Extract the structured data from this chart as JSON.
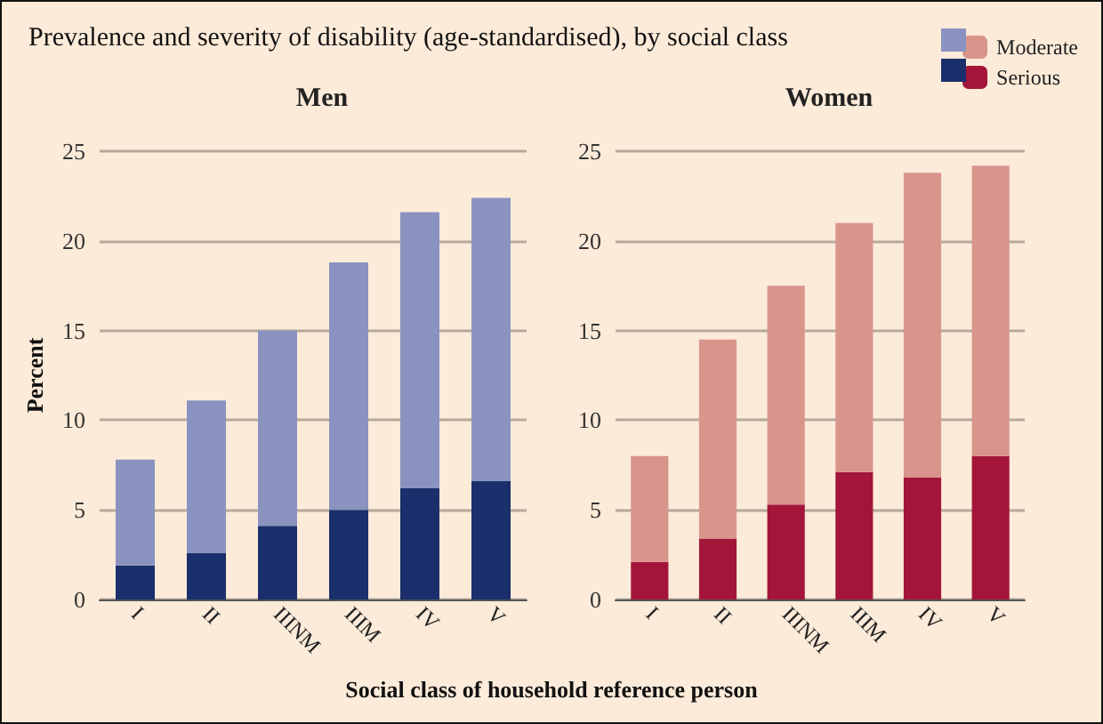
{
  "chart_data": [
    {
      "type": "bar",
      "title": "Prevalence and severity of disability (age-standardised), by social class",
      "subtitle": "Men",
      "xlabel": "Social class of household reference person",
      "ylabel": "Percent",
      "categories": [
        "I",
        "II",
        "IIINM",
        "IIIM",
        "IV",
        "V"
      ],
      "stacked": true,
      "series": [
        {
          "color": "#1a2f6b",
          "values": [
            1.9,
            2.6,
            4.1,
            5.0,
            6.2,
            6.6
          ]
        },
        {
          "color": "#8a93c0",
          "values": [
            5.9,
            8.5,
            10.9,
            13.8,
            15.4,
            15.8
          ]
        }
      ],
      "ylim": [
        0,
        25
      ],
      "yticks": [
        0,
        5,
        10,
        15,
        20,
        25
      ],
      "grid": "y"
    },
    {
      "type": "bar",
      "subtitle": "Women",
      "categories": [
        "I",
        "II",
        "IIINM",
        "IIIM",
        "IV",
        "V"
      ],
      "stacked": true,
      "series": [
        {
          "name": "Serious",
          "color": "#a3163a",
          "values": [
            2.1,
            3.4,
            5.3,
            7.1,
            6.8,
            8.0
          ]
        },
        {
          "name": "Moderate",
          "color": "#d9948c",
          "values": [
            5.9,
            11.1,
            12.2,
            13.9,
            17.0,
            16.2
          ]
        }
      ],
      "ylim": [
        0,
        25
      ],
      "yticks": [
        0,
        5,
        10,
        15,
        20,
        25
      ],
      "grid": "y",
      "legend": "top right"
    }
  ]
}
